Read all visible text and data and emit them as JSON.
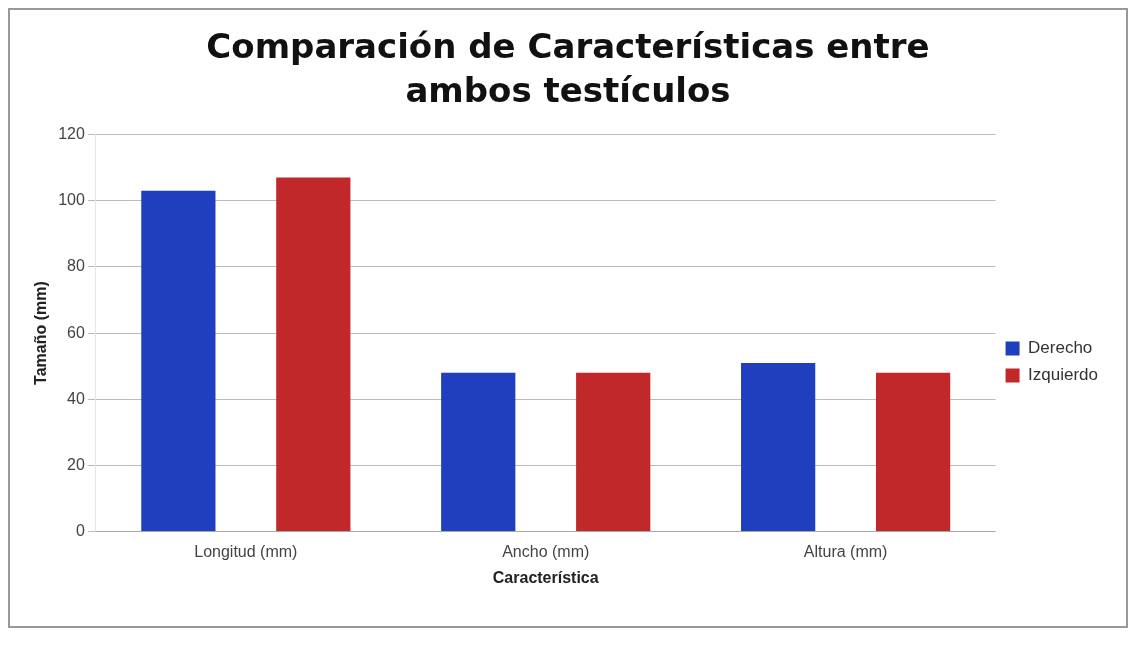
{
  "chart_data": {
    "type": "bar",
    "title": "Comparación de Características entre ambos testículos",
    "xlabel": "Característica",
    "ylabel": "Tamaño (mm)",
    "categories": [
      "Longitud (mm)",
      "Ancho (mm)",
      "Altura (mm)"
    ],
    "series": [
      {
        "name": "Derecho",
        "color": "#1f3fbf",
        "values": [
          103,
          48,
          51
        ]
      },
      {
        "name": "Izquierdo",
        "color": "#c0282a",
        "values": [
          107,
          48,
          48
        ]
      }
    ],
    "ylim": [
      0,
      120
    ],
    "yticks": [
      0,
      20,
      40,
      60,
      80,
      100,
      120
    ],
    "grid": "y",
    "legend": "right"
  }
}
